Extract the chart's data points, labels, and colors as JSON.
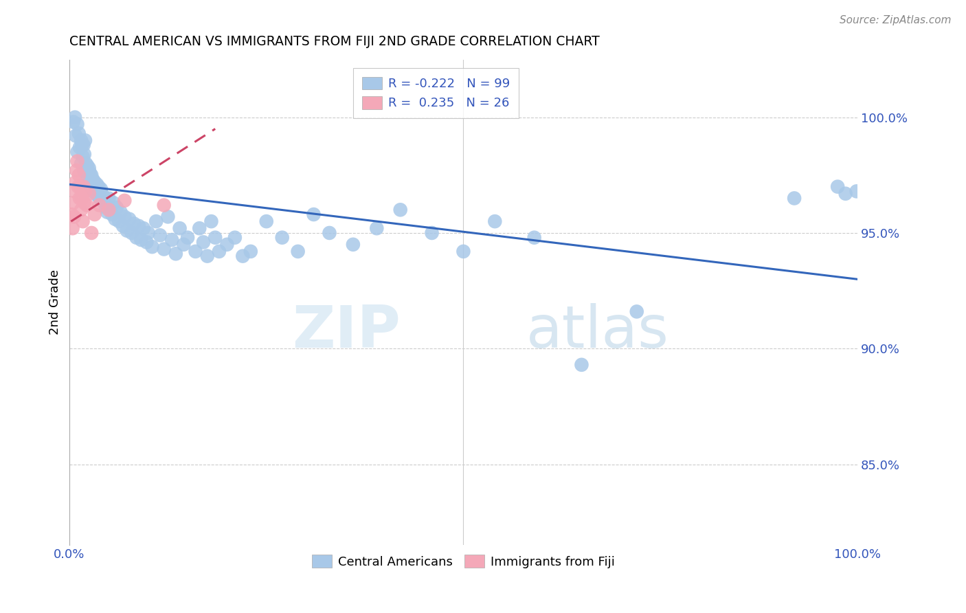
{
  "title": "CENTRAL AMERICAN VS IMMIGRANTS FROM FIJI 2ND GRADE CORRELATION CHART",
  "source": "Source: ZipAtlas.com",
  "ylabel": "2nd Grade",
  "yaxis_labels": [
    "100.0%",
    "95.0%",
    "90.0%",
    "85.0%"
  ],
  "yaxis_values": [
    1.0,
    0.95,
    0.9,
    0.85
  ],
  "xaxis_range": [
    0.0,
    1.0
  ],
  "yaxis_range": [
    0.815,
    1.025
  ],
  "legend_blue_r": "-0.222",
  "legend_blue_n": "99",
  "legend_pink_r": "0.235",
  "legend_pink_n": "26",
  "blue_color": "#a8c8e8",
  "pink_color": "#f4a8b8",
  "blue_line_color": "#3366bb",
  "pink_line_color": "#cc4466",
  "watermark_zip": "ZIP",
  "watermark_atlas": "atlas",
  "blue_line_x0": 0.0,
  "blue_line_x1": 1.0,
  "blue_line_y0": 0.971,
  "blue_line_y1": 0.93,
  "pink_line_x0": 0.002,
  "pink_line_x1": 0.185,
  "pink_line_y0": 0.955,
  "pink_line_y1": 0.995,
  "blue_scatter_x": [
    0.005,
    0.007,
    0.008,
    0.01,
    0.01,
    0.012,
    0.013,
    0.015,
    0.015,
    0.016,
    0.017,
    0.018,
    0.018,
    0.019,
    0.02,
    0.02,
    0.021,
    0.022,
    0.023,
    0.024,
    0.025,
    0.025,
    0.026,
    0.027,
    0.028,
    0.029,
    0.03,
    0.031,
    0.032,
    0.033,
    0.035,
    0.036,
    0.037,
    0.038,
    0.04,
    0.041,
    0.043,
    0.045,
    0.046,
    0.048,
    0.05,
    0.052,
    0.054,
    0.056,
    0.058,
    0.06,
    0.063,
    0.065,
    0.068,
    0.07,
    0.073,
    0.076,
    0.079,
    0.082,
    0.085,
    0.088,
    0.091,
    0.094,
    0.098,
    0.1,
    0.105,
    0.11,
    0.115,
    0.12,
    0.125,
    0.13,
    0.135,
    0.14,
    0.145,
    0.15,
    0.16,
    0.165,
    0.17,
    0.175,
    0.18,
    0.185,
    0.19,
    0.2,
    0.21,
    0.22,
    0.23,
    0.25,
    0.27,
    0.29,
    0.31,
    0.33,
    0.36,
    0.39,
    0.42,
    0.46,
    0.5,
    0.54,
    0.59,
    0.65,
    0.72,
    0.92,
    0.975,
    0.985,
    0.999
  ],
  "blue_scatter_y": [
    0.998,
    1.0,
    0.992,
    0.997,
    0.985,
    0.993,
    0.987,
    0.99,
    0.98,
    0.988,
    0.983,
    0.988,
    0.977,
    0.984,
    0.99,
    0.978,
    0.98,
    0.975,
    0.979,
    0.974,
    0.978,
    0.971,
    0.976,
    0.97,
    0.975,
    0.969,
    0.973,
    0.968,
    0.972,
    0.967,
    0.971,
    0.966,
    0.97,
    0.965,
    0.969,
    0.964,
    0.966,
    0.963,
    0.961,
    0.959,
    0.965,
    0.96,
    0.958,
    0.963,
    0.956,
    0.961,
    0.955,
    0.959,
    0.953,
    0.957,
    0.951,
    0.956,
    0.95,
    0.954,
    0.948,
    0.953,
    0.947,
    0.952,
    0.946,
    0.95,
    0.944,
    0.955,
    0.949,
    0.943,
    0.957,
    0.947,
    0.941,
    0.952,
    0.945,
    0.948,
    0.942,
    0.952,
    0.946,
    0.94,
    0.955,
    0.948,
    0.942,
    0.945,
    0.948,
    0.94,
    0.942,
    0.955,
    0.948,
    0.942,
    0.958,
    0.95,
    0.945,
    0.952,
    0.96,
    0.95,
    0.942,
    0.955,
    0.948,
    0.893,
    0.916,
    0.965,
    0.97,
    0.967,
    0.968
  ],
  "pink_scatter_x": [
    0.003,
    0.004,
    0.005,
    0.006,
    0.007,
    0.008,
    0.009,
    0.01,
    0.011,
    0.012,
    0.013,
    0.014,
    0.015,
    0.016,
    0.017,
    0.018,
    0.019,
    0.02,
    0.022,
    0.025,
    0.028,
    0.032,
    0.038,
    0.05,
    0.07,
    0.12
  ],
  "pink_scatter_y": [
    0.958,
    0.952,
    0.963,
    0.957,
    0.968,
    0.972,
    0.977,
    0.981,
    0.97,
    0.975,
    0.965,
    0.97,
    0.96,
    0.965,
    0.955,
    0.97,
    0.963,
    0.968,
    0.962,
    0.967,
    0.95,
    0.958,
    0.962,
    0.96,
    0.964,
    0.962
  ]
}
